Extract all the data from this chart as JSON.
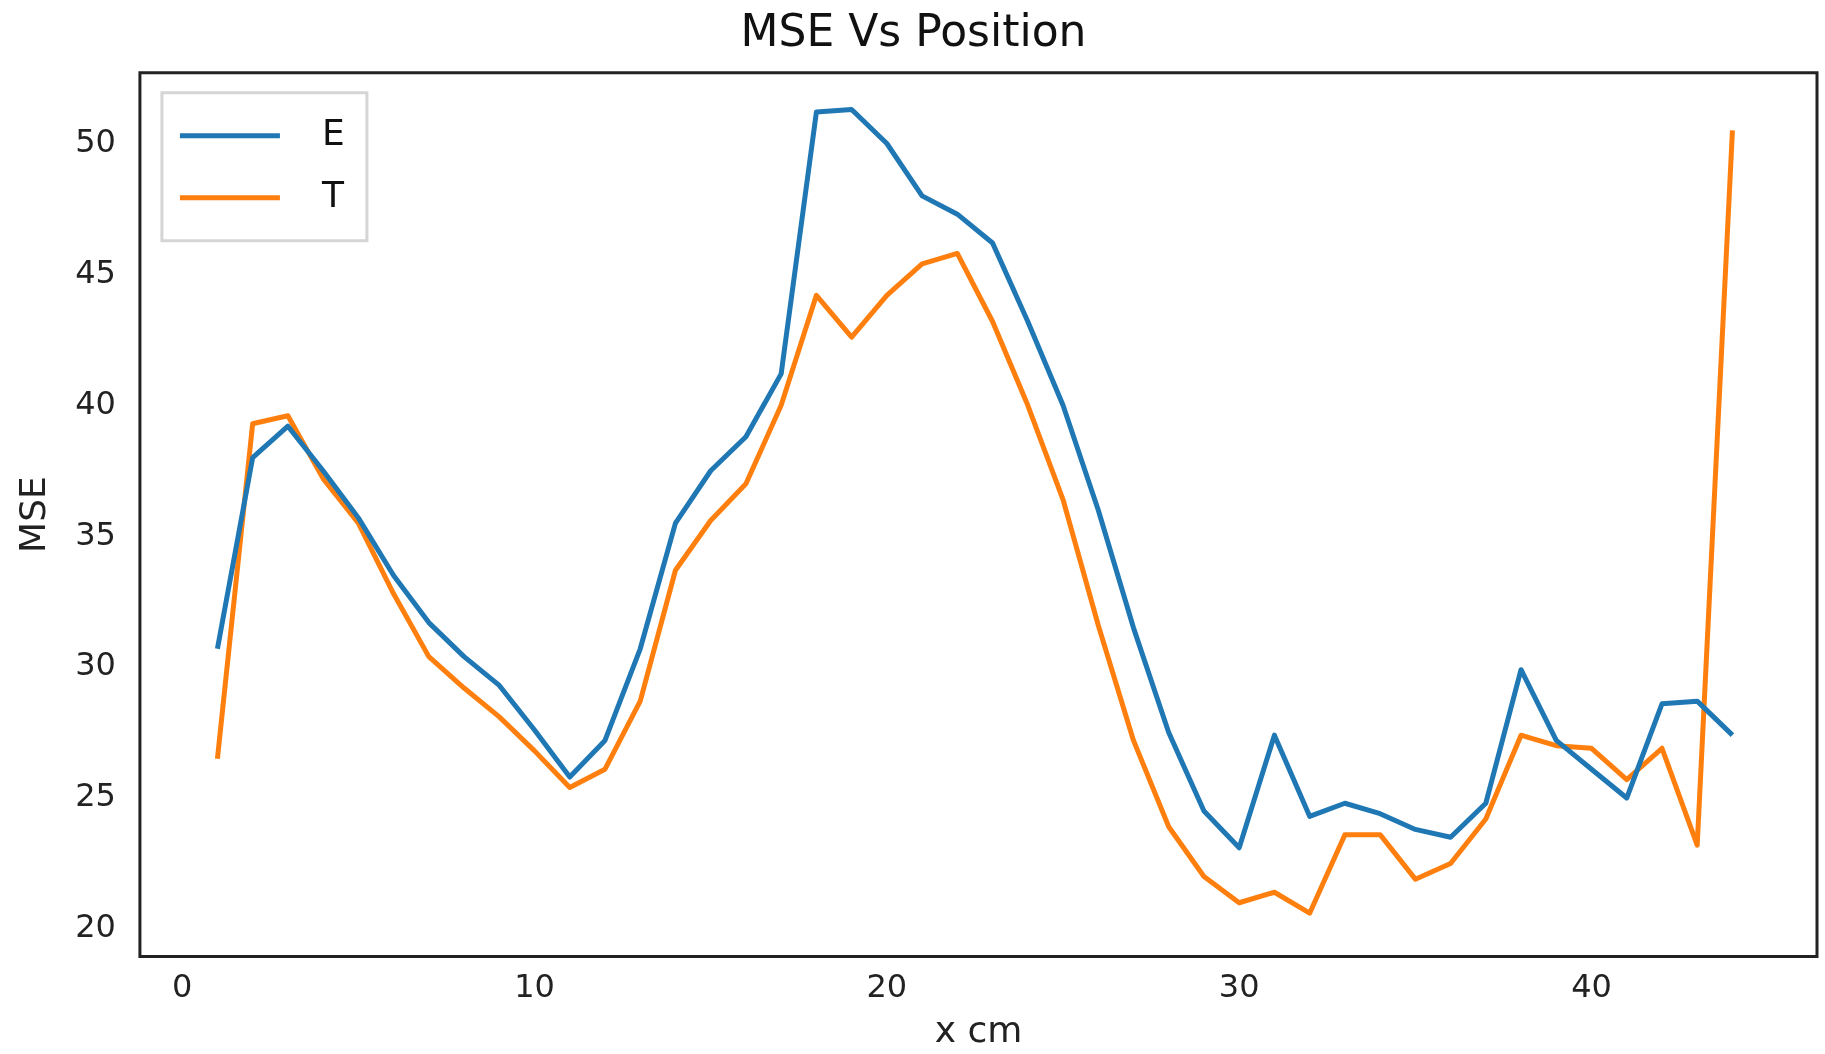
{
  "chart_data": {
    "type": "line",
    "title": "MSE Vs Position",
    "xlabel": "x cm",
    "ylabel": "MSE",
    "x": [
      1,
      2,
      3,
      4,
      5,
      6,
      7,
      8,
      9,
      10,
      11,
      12,
      13,
      14,
      15,
      16,
      17,
      18,
      19,
      20,
      21,
      22,
      23,
      24,
      25,
      26,
      27,
      28,
      29,
      30,
      31,
      32,
      33,
      34,
      35,
      36,
      37,
      38,
      39,
      40,
      41,
      42,
      43,
      44
    ],
    "series": [
      {
        "name": "E",
        "color": "#1f77b4",
        "values": [
          30.7,
          38,
          39.2,
          37.5,
          35.7,
          33.5,
          31.7,
          30.4,
          29.3,
          27.6,
          25.8,
          27.2,
          30.7,
          35.5,
          37.5,
          38.8,
          41.2,
          51.2,
          51.3,
          50,
          48,
          47.3,
          46.2,
          43.2,
          40,
          36,
          31.5,
          27.5,
          24.5,
          23.1,
          27.4,
          24.3,
          24.8,
          24.4,
          23.8,
          23.5,
          24.8,
          29.9,
          27.2,
          26.1,
          25,
          28.6,
          28.7,
          27.4
        ]
      },
      {
        "name": "T",
        "color": "#ff7f0e",
        "values": [
          26.5,
          39.3,
          39.6,
          37.2,
          35.5,
          32.8,
          30.4,
          29.2,
          28.1,
          26.8,
          25.4,
          26.1,
          28.7,
          33.7,
          35.6,
          37,
          40,
          44.2,
          42.6,
          44.2,
          45.4,
          45.8,
          43.2,
          40,
          36.4,
          31.6,
          27.2,
          23.9,
          22,
          21,
          21.4,
          20.6,
          23.6,
          23.6,
          21.9,
          22.5,
          24.2,
          27.4,
          27,
          26.9,
          25.7,
          26.9,
          23.2,
          50.5
        ]
      }
    ],
    "xlim": [
      -1.2,
      46.4
    ],
    "xticks": [
      0,
      10,
      20,
      30,
      40
    ],
    "ylim": [
      18.95,
      52.7
    ],
    "yticks": [
      20,
      25,
      30,
      35,
      40,
      45,
      50
    ],
    "grid": false,
    "legend": "top left",
    "marker": "none",
    "line_style": "solid"
  }
}
